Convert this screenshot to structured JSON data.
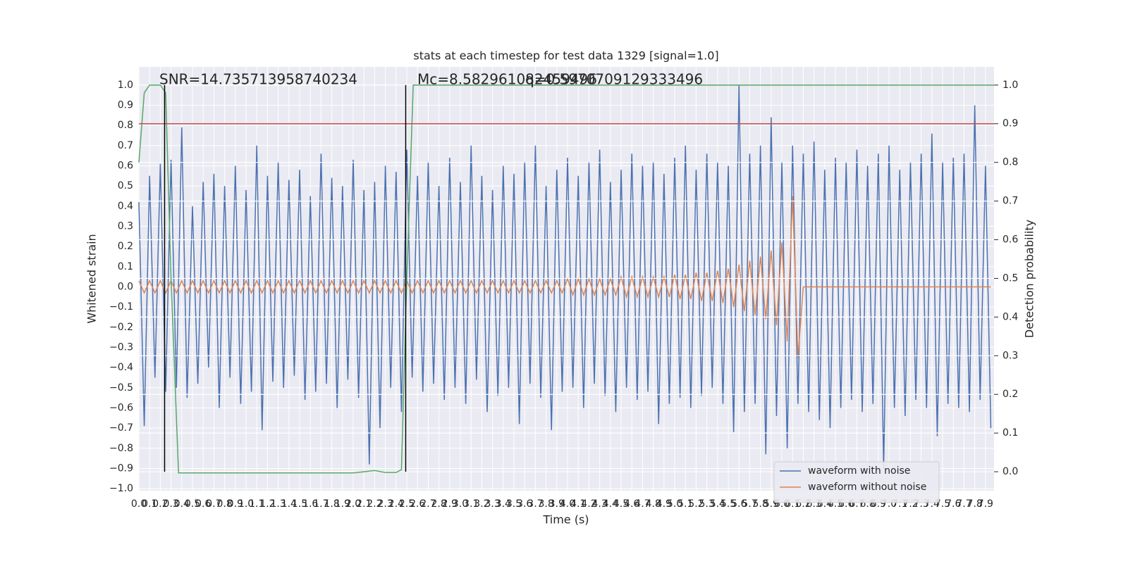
{
  "chart_data": {
    "type": "line",
    "title": "stats at each timestep for test data 1329 [signal=1.0]",
    "x_label": "Time (s)",
    "y_label": "Whitened strain",
    "y2_label": "Detection probability",
    "annotations": [
      "SNR=14.735713958740234",
      "Mc=8.582961082459496",
      "q=0.5970709129333496"
    ],
    "grid": true,
    "legend": "lower right",
    "xlim": [
      0,
      7.98
    ],
    "ylim": [
      -1.01,
      1.09
    ],
    "y2lim": [
      -0.049,
      1.047
    ],
    "xticks": [
      {
        "value": 0,
        "label": "0.0"
      },
      {
        "value": 0.1,
        "label": "0.1"
      },
      {
        "value": 0.2,
        "label": "0.2"
      },
      {
        "value": 0.3,
        "label": "0.3"
      },
      {
        "value": 0.4,
        "label": "0.4"
      },
      {
        "value": 0.5,
        "label": "0.5"
      },
      {
        "value": 0.6,
        "label": "0.6"
      },
      {
        "value": 0.7,
        "label": "0.7"
      },
      {
        "value": 0.8,
        "label": "0.8"
      },
      {
        "value": 0.9,
        "label": "0.9"
      },
      {
        "value": 1,
        "label": "1.0"
      },
      {
        "value": 1.1,
        "label": "1.1"
      },
      {
        "value": 1.2,
        "label": "1.2"
      },
      {
        "value": 1.3,
        "label": "1.3"
      },
      {
        "value": 1.4,
        "label": "1.4"
      },
      {
        "value": 1.5,
        "label": "1.5"
      },
      {
        "value": 1.6,
        "label": "1.6"
      },
      {
        "value": 1.7,
        "label": "1.7"
      },
      {
        "value": 1.8,
        "label": "1.8"
      },
      {
        "value": 1.9,
        "label": "1.9"
      },
      {
        "value": 2,
        "label": "2.0"
      },
      {
        "value": 2.1,
        "label": "2.1"
      },
      {
        "value": 2.2,
        "label": "2.2"
      },
      {
        "value": 2.3,
        "label": "2.3"
      },
      {
        "value": 2.4,
        "label": "2.4"
      },
      {
        "value": 2.5,
        "label": "2.5"
      },
      {
        "value": 2.6,
        "label": "2.6"
      },
      {
        "value": 2.7,
        "label": "2.7"
      },
      {
        "value": 2.8,
        "label": "2.8"
      },
      {
        "value": 2.9,
        "label": "2.9"
      },
      {
        "value": 3,
        "label": "3.0"
      },
      {
        "value": 3.1,
        "label": "3.1"
      },
      {
        "value": 3.2,
        "label": "3.2"
      },
      {
        "value": 3.3,
        "label": "3.3"
      },
      {
        "value": 3.4,
        "label": "3.4"
      },
      {
        "value": 3.5,
        "label": "3.5"
      },
      {
        "value": 3.6,
        "label": "3.6"
      },
      {
        "value": 3.7,
        "label": "3.7"
      },
      {
        "value": 3.8,
        "label": "3.8"
      },
      {
        "value": 3.9,
        "label": "3.9"
      },
      {
        "value": 4,
        "label": "4.0"
      },
      {
        "value": 4.1,
        "label": "4.1"
      },
      {
        "value": 4.2,
        "label": "4.2"
      },
      {
        "value": 4.3,
        "label": "4.3"
      },
      {
        "value": 4.4,
        "label": "4.4"
      },
      {
        "value": 4.5,
        "label": "4.5"
      },
      {
        "value": 4.6,
        "label": "4.6"
      },
      {
        "value": 4.7,
        "label": "4.7"
      },
      {
        "value": 4.8,
        "label": "4.8"
      },
      {
        "value": 4.9,
        "label": "4.9"
      },
      {
        "value": 5,
        "label": "5.0"
      },
      {
        "value": 5.1,
        "label": "5.1"
      },
      {
        "value": 5.2,
        "label": "5.2"
      },
      {
        "value": 5.3,
        "label": "5.3"
      },
      {
        "value": 5.4,
        "label": "5.4"
      },
      {
        "value": 5.5,
        "label": "5.5"
      },
      {
        "value": 5.6,
        "label": "5.6"
      },
      {
        "value": 5.7,
        "label": "5.7"
      },
      {
        "value": 5.8,
        "label": "5.8"
      },
      {
        "value": 5.9,
        "label": "5.9"
      },
      {
        "value": 6,
        "label": "6.0"
      },
      {
        "value": 6.1,
        "label": "6.1"
      },
      {
        "value": 6.2,
        "label": "6.2"
      },
      {
        "value": 6.3,
        "label": "6.3"
      },
      {
        "value": 6.4,
        "label": "6.4"
      },
      {
        "value": 6.5,
        "label": "6.5"
      },
      {
        "value": 6.6,
        "label": "6.6"
      },
      {
        "value": 6.7,
        "label": "6.7"
      },
      {
        "value": 6.8,
        "label": "6.8"
      },
      {
        "value": 6.9,
        "label": "6.9"
      },
      {
        "value": 7,
        "label": "7.0"
      },
      {
        "value": 7.1,
        "label": "7.1"
      },
      {
        "value": 7.2,
        "label": "7.2"
      },
      {
        "value": 7.3,
        "label": "7.3"
      },
      {
        "value": 7.4,
        "label": "7.4"
      },
      {
        "value": 7.5,
        "label": "7.5"
      },
      {
        "value": 7.6,
        "label": "7.6"
      },
      {
        "value": 7.7,
        "label": "7.7"
      },
      {
        "value": 7.8,
        "label": "7.8"
      },
      {
        "value": 7.9,
        "label": "7.9"
      }
    ],
    "yticks": [
      {
        "value": -1,
        "label": "−1.0"
      },
      {
        "value": -0.9,
        "label": "−0.9"
      },
      {
        "value": -0.8,
        "label": "−0.8"
      },
      {
        "value": -0.7,
        "label": "−0.7"
      },
      {
        "value": -0.6,
        "label": "−0.6"
      },
      {
        "value": -0.5,
        "label": "−0.5"
      },
      {
        "value": -0.4,
        "label": "−0.4"
      },
      {
        "value": -0.3,
        "label": "−0.3"
      },
      {
        "value": -0.2,
        "label": "−0.2"
      },
      {
        "value": -0.1,
        "label": "−0.1"
      },
      {
        "value": 0,
        "label": "0.0"
      },
      {
        "value": 0.1,
        "label": "0.1"
      },
      {
        "value": 0.2,
        "label": "0.2"
      },
      {
        "value": 0.3,
        "label": "0.3"
      },
      {
        "value": 0.4,
        "label": "0.4"
      },
      {
        "value": 0.5,
        "label": "0.5"
      },
      {
        "value": 0.6,
        "label": "0.6"
      },
      {
        "value": 0.7,
        "label": "0.7"
      },
      {
        "value": 0.8,
        "label": "0.8"
      },
      {
        "value": 0.9,
        "label": "0.9"
      },
      {
        "value": 1,
        "label": "1.0"
      }
    ],
    "y2ticks": [
      {
        "value": 0,
        "label": "0.0"
      },
      {
        "value": 0.1,
        "label": "0.1"
      },
      {
        "value": 0.2,
        "label": "0.2"
      },
      {
        "value": 0.3,
        "label": "0.3"
      },
      {
        "value": 0.4,
        "label": "0.4"
      },
      {
        "value": 0.5,
        "label": "0.5"
      },
      {
        "value": 0.6,
        "label": "0.6"
      },
      {
        "value": 0.7,
        "label": "0.7"
      },
      {
        "value": 0.8,
        "label": "0.8"
      },
      {
        "value": 0.9,
        "label": "0.9"
      },
      {
        "value": 1,
        "label": "1.0"
      }
    ],
    "threshold": 0.9,
    "threshold_color": "#c44e52",
    "markers": [
      0.24,
      2.49
    ],
    "marker_color": "#000000",
    "x": [
      0,
      0.05,
      0.1,
      0.15,
      0.2,
      0.25,
      0.3,
      0.35,
      0.4,
      0.45,
      0.5,
      0.55,
      0.6,
      0.65,
      0.7,
      0.75,
      0.8,
      0.85,
      0.9,
      0.95,
      1,
      1.05,
      1.1,
      1.15,
      1.2,
      1.25,
      1.3,
      1.35,
      1.4,
      1.45,
      1.5,
      1.55,
      1.6,
      1.65,
      1.7,
      1.75,
      1.8,
      1.85,
      1.9,
      1.95,
      2,
      2.05,
      2.1,
      2.15,
      2.2,
      2.25,
      2.3,
      2.35,
      2.4,
      2.45,
      2.5,
      2.55,
      2.6,
      2.65,
      2.7,
      2.75,
      2.8,
      2.85,
      2.9,
      2.95,
      3,
      3.05,
      3.1,
      3.15,
      3.2,
      3.25,
      3.3,
      3.35,
      3.4,
      3.45,
      3.5,
      3.55,
      3.6,
      3.65,
      3.7,
      3.75,
      3.8,
      3.85,
      3.9,
      3.95,
      4,
      4.05,
      4.1,
      4.15,
      4.2,
      4.25,
      4.3,
      4.35,
      4.4,
      4.45,
      4.5,
      4.55,
      4.6,
      4.65,
      4.7,
      4.75,
      4.8,
      4.85,
      4.9,
      4.95,
      5,
      5.05,
      5.1,
      5.15,
      5.2,
      5.25,
      5.3,
      5.35,
      5.4,
      5.45,
      5.5,
      5.55,
      5.6,
      5.65,
      5.7,
      5.75,
      5.8,
      5.85,
      5.9,
      5.95,
      6,
      6.05,
      6.1,
      6.15,
      6.2,
      6.25,
      6.3,
      6.35,
      6.4,
      6.45,
      6.5,
      6.55,
      6.6,
      6.65,
      6.7,
      6.75,
      6.8,
      6.85,
      6.9,
      6.95,
      7,
      7.05,
      7.1,
      7.15,
      7.2,
      7.25,
      7.3,
      7.35,
      7.4,
      7.45,
      7.5,
      7.55,
      7.6,
      7.65,
      7.7,
      7.75,
      7.8,
      7.85,
      7.9,
      7.95
    ],
    "series": [
      {
        "name": "waveform with noise",
        "color": "#4c72b0",
        "values": [
          0.42,
          -0.69,
          0.55,
          -0.45,
          0.61,
          -0.52,
          0.63,
          -0.5,
          0.79,
          -0.55,
          0.4,
          -0.48,
          0.52,
          -0.4,
          0.56,
          -0.6,
          0.5,
          -0.45,
          0.6,
          -0.58,
          0.48,
          -0.52,
          0.7,
          -0.71,
          0.55,
          -0.47,
          0.62,
          -0.5,
          0.53,
          -0.44,
          0.58,
          -0.56,
          0.45,
          -0.52,
          0.66,
          -0.48,
          0.54,
          -0.6,
          0.5,
          -0.46,
          0.63,
          -0.55,
          0.48,
          -0.88,
          0.52,
          -0.7,
          0.6,
          -0.5,
          0.57,
          -0.62,
          0.68,
          -0.45,
          0.55,
          -0.52,
          0.62,
          -0.48,
          0.5,
          -0.56,
          0.64,
          -0.5,
          0.52,
          -0.58,
          0.7,
          -0.46,
          0.55,
          -0.62,
          0.48,
          -0.54,
          0.6,
          -0.5,
          0.56,
          -0.68,
          0.62,
          -0.48,
          0.7,
          -0.55,
          0.5,
          -0.71,
          0.58,
          -0.52,
          0.64,
          -0.5,
          0.55,
          -0.6,
          0.62,
          -0.48,
          0.68,
          -0.54,
          0.52,
          -0.62,
          0.58,
          -0.5,
          0.66,
          -0.56,
          0.6,
          -0.52,
          0.62,
          -0.68,
          0.56,
          -0.58,
          0.64,
          -0.55,
          0.7,
          -0.6,
          0.58,
          -0.54,
          0.66,
          -0.5,
          0.62,
          -0.58,
          0.6,
          -0.72,
          1.0,
          -0.62,
          0.66,
          -0.58,
          0.7,
          -0.83,
          0.84,
          -0.64,
          0.62,
          -0.8,
          0.7,
          -0.58,
          0.66,
          -0.62,
          0.72,
          -0.66,
          0.58,
          -0.7,
          0.64,
          -0.6,
          0.62,
          -0.56,
          0.68,
          -0.62,
          0.6,
          -0.58,
          0.66,
          -0.9,
          0.7,
          -0.6,
          0.58,
          -0.64,
          0.62,
          -0.56,
          0.66,
          -0.6,
          0.76,
          -0.74,
          0.62,
          -0.58,
          0.64,
          -0.6,
          0.66,
          -0.62,
          0.9,
          -0.56,
          0.6,
          -0.7
        ]
      },
      {
        "name": "waveform without noise",
        "color": "#dd8452",
        "values": [
          0.03,
          -0.03,
          0.03,
          -0.03,
          0.03,
          -0.03,
          0.03,
          -0.03,
          0.03,
          -0.03,
          0.03,
          -0.03,
          0.03,
          -0.03,
          0.03,
          -0.03,
          0.03,
          -0.03,
          0.03,
          -0.03,
          0.03,
          -0.03,
          0.03,
          -0.03,
          0.03,
          -0.03,
          0.03,
          -0.03,
          0.03,
          -0.03,
          0.03,
          -0.03,
          0.03,
          -0.03,
          0.03,
          -0.03,
          0.03,
          -0.03,
          0.03,
          -0.03,
          0.03,
          -0.03,
          0.03,
          -0.03,
          0.03,
          -0.03,
          0.03,
          -0.03,
          0.03,
          -0.03,
          0.03,
          -0.03,
          0.03,
          -0.03,
          0.03,
          -0.03,
          0.03,
          -0.03,
          0.03,
          -0.03,
          0.03,
          -0.03,
          0.03,
          -0.03,
          0.03,
          -0.03,
          0.03,
          -0.03,
          0.03,
          -0.03,
          0.03,
          -0.03,
          0.03,
          -0.03,
          0.03,
          -0.03,
          0.03,
          -0.03,
          0.03,
          -0.03,
          0.04,
          -0.04,
          0.04,
          -0.04,
          0.04,
          -0.04,
          0.04,
          -0.04,
          0.04,
          -0.04,
          0.05,
          -0.05,
          0.05,
          -0.05,
          0.05,
          -0.05,
          0.05,
          -0.05,
          0.05,
          -0.05,
          0.06,
          -0.06,
          0.06,
          -0.06,
          0.07,
          -0.07,
          0.07,
          -0.07,
          0.08,
          -0.08,
          0.09,
          -0.1,
          0.11,
          -0.12,
          0.13,
          -0.14,
          0.15,
          -0.16,
          0.18,
          -0.19,
          0.22,
          -0.27,
          0.45,
          -0.35,
          0,
          0,
          0,
          0,
          0,
          0,
          0,
          0,
          0,
          0,
          0,
          0,
          0,
          0,
          0,
          0,
          0,
          0,
          0,
          0,
          0,
          0,
          0,
          0,
          0,
          0,
          0,
          0,
          0,
          0,
          0,
          0,
          0,
          0,
          0,
          0
        ]
      },
      {
        "color": "#55a868",
        "axis": "y2",
        "x": [
          0,
          0.05,
          0.1,
          0.15,
          0.2,
          0.25,
          0.3,
          0.37,
          0.5,
          1,
          1.5,
          2,
          2.1,
          2.2,
          2.3,
          2.4,
          2.45,
          2.5,
          2.56,
          3,
          4,
          5,
          6,
          7,
          7.98
        ],
        "values": [
          0.8,
          0.98,
          1.0,
          1.0,
          1.0,
          0.98,
          0.5,
          -0.003,
          -0.003,
          -0.003,
          -0.003,
          -0.003,
          0,
          0.003,
          -0.002,
          -0.002,
          0.005,
          0.5,
          1.0,
          1.0,
          1.0,
          1.0,
          1.0,
          1.0,
          1.0
        ]
      }
    ]
  }
}
